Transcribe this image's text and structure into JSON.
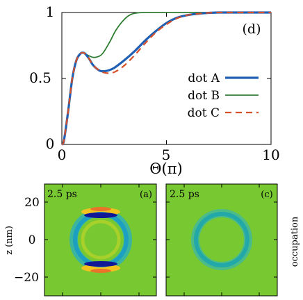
{
  "chart_data": [
    {
      "type": "line",
      "panel_label": "(d)",
      "xlabel": "Θ(π)",
      "ylabel": "",
      "xlim": [
        0,
        10
      ],
      "ylim": [
        0,
        1
      ],
      "x_ticks": [
        "0",
        "5",
        "10"
      ],
      "y_ticks": [
        "0",
        "0.5",
        "1"
      ],
      "legend_position": "center-right",
      "series": [
        {
          "name": "dot A",
          "color": "#1f5fb4",
          "style": "solid-thick",
          "x": [
            0,
            0.1,
            0.3,
            0.5,
            0.7,
            0.9,
            1.0,
            1.1,
            1.3,
            1.5,
            1.8,
            2.0,
            2.2,
            2.5,
            3.0,
            3.5,
            4.0,
            4.5,
            5.0,
            5.5,
            6.0,
            6.5,
            7.0,
            7.5,
            8.0,
            9.0,
            10.0
          ],
          "y": [
            0,
            0.03,
            0.25,
            0.5,
            0.64,
            0.69,
            0.695,
            0.69,
            0.65,
            0.6,
            0.56,
            0.555,
            0.56,
            0.58,
            0.64,
            0.71,
            0.79,
            0.86,
            0.92,
            0.96,
            0.98,
            0.99,
            0.997,
            1.0,
            1.0,
            1.0,
            1.0
          ]
        },
        {
          "name": "dot B",
          "color": "#2e7d32",
          "style": "solid",
          "x": [
            0,
            0.1,
            0.3,
            0.5,
            0.7,
            0.9,
            1.0,
            1.2,
            1.5,
            1.8,
            2.0,
            2.3,
            2.6,
            3.0,
            3.3,
            3.6,
            4.0,
            4.5,
            5.0,
            6.0,
            7.0,
            8.0,
            9.0,
            10.0
          ],
          "y": [
            0,
            0.03,
            0.25,
            0.5,
            0.64,
            0.69,
            0.695,
            0.68,
            0.66,
            0.67,
            0.7,
            0.78,
            0.87,
            0.95,
            0.985,
            0.997,
            1.0,
            1.0,
            1.0,
            1.0,
            1.0,
            1.0,
            1.0,
            1.0
          ]
        },
        {
          "name": "dot C",
          "color": "#d6502a",
          "style": "dashed",
          "x": [
            0,
            0.1,
            0.3,
            0.5,
            0.7,
            0.9,
            1.0,
            1.1,
            1.3,
            1.5,
            1.8,
            2.0,
            2.3,
            2.6,
            3.0,
            3.5,
            4.0,
            4.5,
            5.0,
            5.5,
            6.0,
            6.5,
            7.0,
            7.5,
            8.0,
            9.0,
            10.0
          ],
          "y": [
            0,
            0.03,
            0.25,
            0.5,
            0.64,
            0.69,
            0.695,
            0.69,
            0.65,
            0.6,
            0.56,
            0.545,
            0.54,
            0.555,
            0.6,
            0.68,
            0.77,
            0.85,
            0.91,
            0.955,
            0.98,
            0.99,
            0.997,
            1.0,
            1.0,
            1.0,
            1.0
          ]
        }
      ]
    },
    {
      "type": "heatmap",
      "panel_label": "(a)",
      "annotation": "2.5 ps",
      "ylabel": "z (nm)",
      "ylim": [
        -28,
        28
      ],
      "y_ticks": [
        "20",
        "0",
        "−20"
      ]
    },
    {
      "type": "heatmap",
      "panel_label": "(c)",
      "annotation": "2.5 ps",
      "colorbar_label": "occupation"
    }
  ]
}
